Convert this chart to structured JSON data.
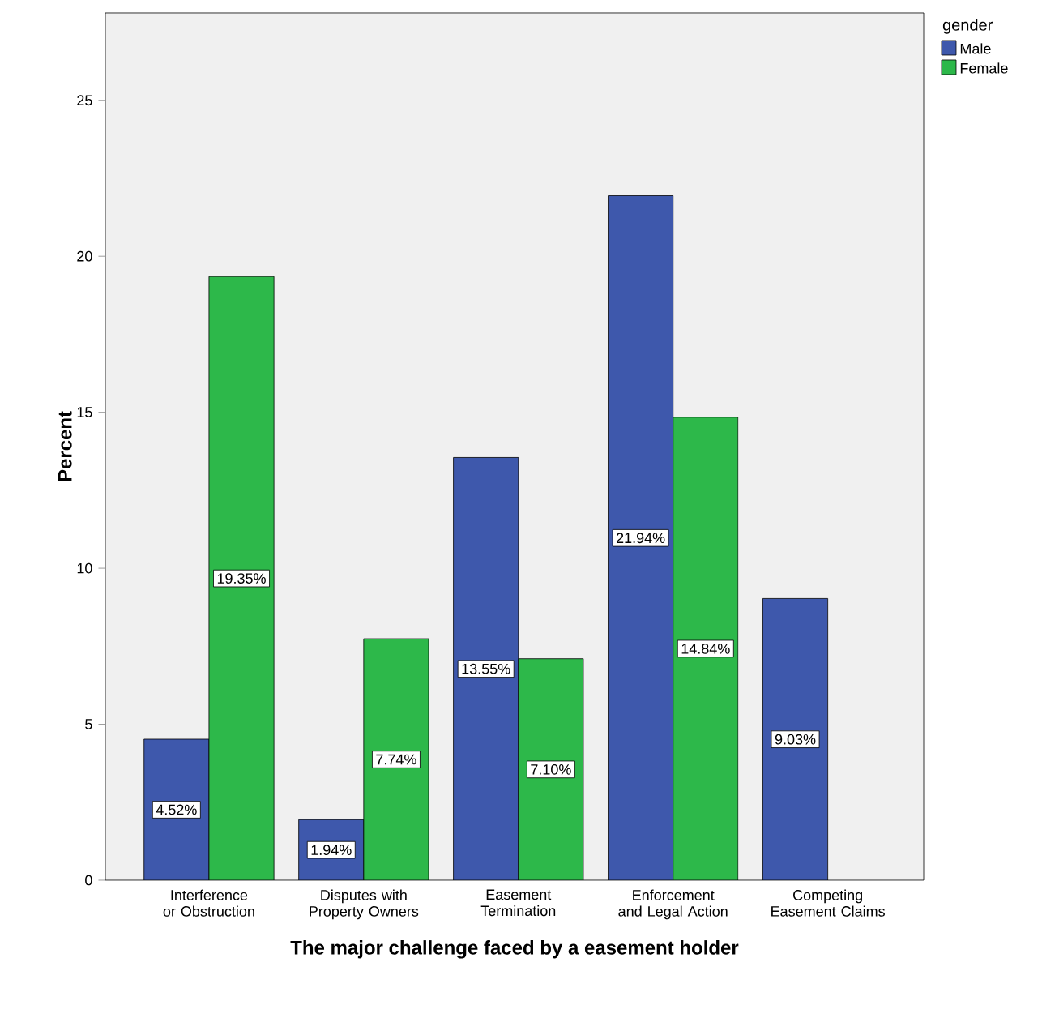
{
  "chart_data": {
    "type": "bar",
    "xlabel": "The major challenge faced by a easement holder",
    "ylabel": "Percent",
    "categories": [
      "Interference or Obstruction",
      "Disputes with Property Owners",
      "Easement Termination",
      "Enforcement and Legal Action",
      "Competing Easement Claims"
    ],
    "series": [
      {
        "name": "Male",
        "color": "#3e58ac",
        "values": [
          4.52,
          1.94,
          13.55,
          21.94,
          9.03
        ],
        "value_labels": [
          "4.52%",
          "1.94%",
          "13.55%",
          "21.94%",
          "9.03%"
        ]
      },
      {
        "name": "Female",
        "color": "#2db84a",
        "values": [
          19.35,
          7.74,
          7.1,
          14.84,
          null
        ],
        "value_labels": [
          "19.35%",
          "7.74%",
          "7.10%",
          "14.84%",
          null
        ]
      }
    ],
    "legend_title": "gender",
    "legend": "top right",
    "ylim": [
      0,
      27.8
    ],
    "yticks": [
      0,
      5,
      10,
      15,
      20,
      25
    ],
    "grid": false
  }
}
